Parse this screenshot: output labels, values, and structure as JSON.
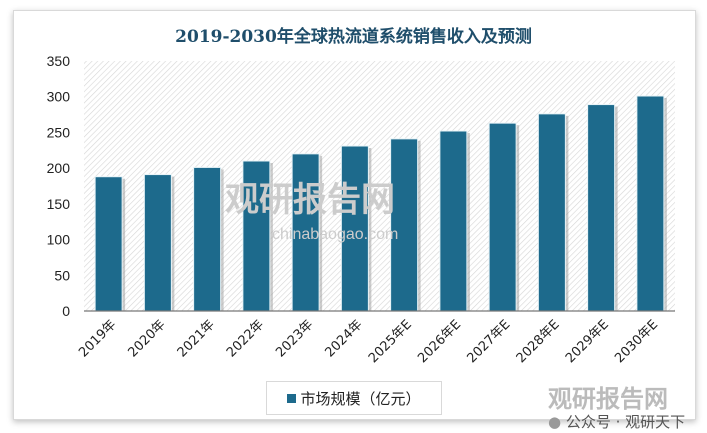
{
  "chart_data": {
    "type": "bar",
    "title": "2019-2030年全球热流道系统销售收入及预测",
    "categories": [
      "2019年",
      "2020年",
      "2021年",
      "2022年",
      "2023年",
      "2024年",
      "2025年E",
      "2026年E",
      "2027年E",
      "2028年E",
      "2029年E",
      "2030年E"
    ],
    "series": [
      {
        "name": "市场规模（亿元）",
        "values": [
          188,
          191,
          201,
          210,
          220,
          231,
          241,
          252,
          263,
          276,
          289,
          301
        ],
        "color": "#1d6a8c"
      }
    ],
    "yticks": [
      "0",
      "50",
      "100",
      "150",
      "200",
      "250",
      "300",
      "350"
    ],
    "ylim": [
      0,
      350
    ],
    "xlabel": "",
    "ylabel": "",
    "grid": false,
    "legend_position": "bottom"
  },
  "watermark": {
    "logo_text": "观研报告网",
    "site": "chinabaogao.com",
    "wechat": "公众号 · 观研天下"
  }
}
